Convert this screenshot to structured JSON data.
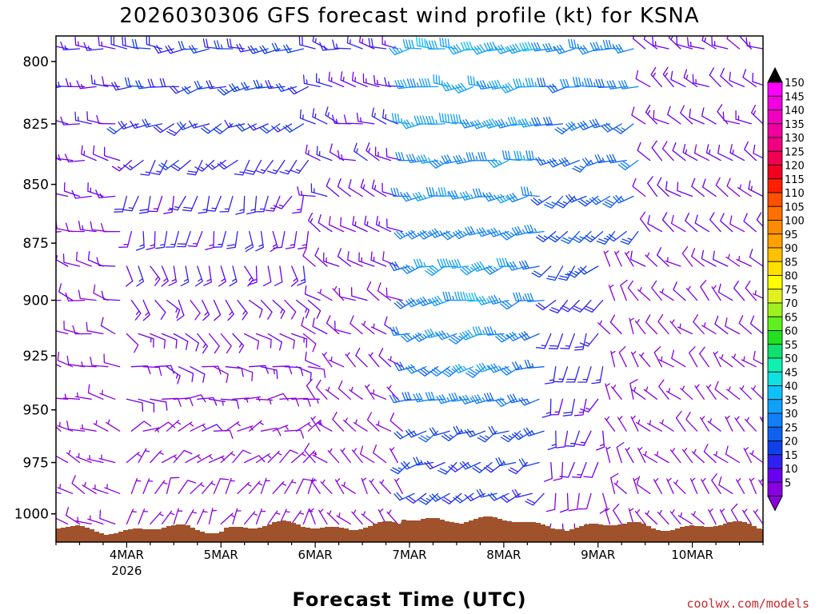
{
  "chart_data": {
    "type": "wind_barb_time_height",
    "title": "2026030306 GFS forecast wind profile (kt) for KSNA",
    "xlabel": "Forecast Time (UTC)",
    "ylabel": "",
    "x_ticks": [
      {
        "day": 4,
        "label": "4MAR",
        "sublabel": "2026"
      },
      {
        "day": 5,
        "label": "5MAR",
        "sublabel": ""
      },
      {
        "day": 6,
        "label": "6MAR",
        "sublabel": ""
      },
      {
        "day": 7,
        "label": "7MAR",
        "sublabel": ""
      },
      {
        "day": 8,
        "label": "8MAR",
        "sublabel": ""
      },
      {
        "day": 9,
        "label": "9MAR",
        "sublabel": ""
      },
      {
        "day": 10,
        "label": "10MAR",
        "sublabel": ""
      }
    ],
    "x_range_days": [
      3.25,
      10.75
    ],
    "y_ticks": [
      800,
      825,
      850,
      875,
      900,
      925,
      950,
      975,
      1000
    ],
    "y_range_hpa": [
      790,
      1014
    ],
    "pressure_levels": [
      795,
      810,
      825,
      840,
      855,
      870,
      885,
      900,
      915,
      930,
      945,
      960,
      975,
      990,
      1005
    ],
    "time_step_hours": 3,
    "colorbar": {
      "unit": "kt",
      "levels": [
        5,
        10,
        15,
        20,
        25,
        30,
        35,
        40,
        45,
        50,
        55,
        60,
        65,
        70,
        75,
        80,
        85,
        90,
        95,
        100,
        105,
        110,
        115,
        120,
        125,
        130,
        135,
        140,
        145,
        150
      ],
      "colors": [
        "#8a00e0",
        "#6a00f0",
        "#3020f0",
        "#1040e8",
        "#1060f0",
        "#1080f8",
        "#10a0f8",
        "#10c0f8",
        "#10e0e0",
        "#10f0b0",
        "#10e070",
        "#20e020",
        "#60f020",
        "#a0f020",
        "#e0f020",
        "#ffff00",
        "#ffe000",
        "#ffc000",
        "#ffa000",
        "#ff8c00",
        "#ff7000",
        "#ff5000",
        "#ff2000",
        "#f00020",
        "#f00050",
        "#f00080",
        "#f000a0",
        "#f000c0",
        "#f000e0",
        "#ff00ff"
      ]
    },
    "wind_regimes": [
      {
        "period": "3MAR12-4MAR00",
        "low_levels": "NW 5-10 kt",
        "upper_levels": "W 10-15 kt"
      },
      {
        "period": "4MAR00-6MAR00",
        "low_levels": "N to NE 5 kt",
        "upper_levels": "W 10-20 kt"
      },
      {
        "period": "6MAR00-7MAR00",
        "low_levels": "NW 5 kt",
        "upper_levels": "W 5-15 kt"
      },
      {
        "period": "7MAR00-8MAR12",
        "low_levels": "SW 20-35 kt",
        "upper_levels": "WSW 30-45 kt, max about 45 kt near 900-925 hPa"
      },
      {
        "period": "8MAR12-9MAR12",
        "low_levels": "S 10-20 kt",
        "upper_levels": "W 25-35 kt"
      },
      {
        "period": "9MAR12-10MAR18",
        "low_levels": "NW 5-10 kt",
        "upper_levels": "NW 5-10 kt"
      }
    ],
    "terrain_fill_color": "#a0522d"
  },
  "credit": "coolwx.com/models"
}
